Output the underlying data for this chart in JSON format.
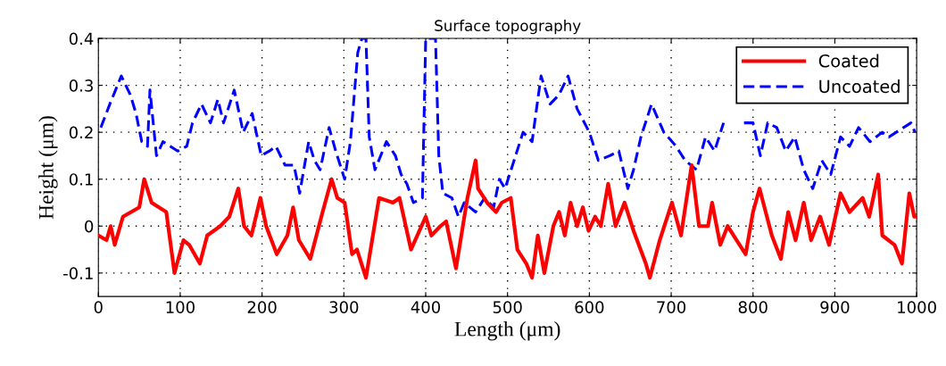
{
  "chart_data": {
    "type": "line",
    "title": "Surface topography",
    "xlabel": "Length (μm)",
    "ylabel": "Height (μm)",
    "xlim": [
      0,
      1000
    ],
    "xticks": [
      0,
      100,
      200,
      300,
      400,
      500,
      600,
      700,
      800,
      900,
      1000
    ],
    "ylim": [
      -0.15,
      0.4
    ],
    "yticks": [
      -0.1,
      0,
      0.1,
      0.2,
      0.3,
      0.4
    ],
    "grid": true,
    "legend": "top right",
    "series": [
      {
        "name": "Coated",
        "color": "#ff0000",
        "line_style": "solid",
        "x": [
          0,
          10,
          15,
          20,
          30,
          40,
          50,
          56,
          65,
          83,
          93,
          104,
          111,
          124,
          133,
          149,
          160,
          171,
          178,
          187,
          198,
          205,
          218,
          231,
          238,
          245,
          259,
          274,
          285,
          292,
          301,
          310,
          316,
          327,
          343,
          360,
          368,
          382,
          400,
          407,
          418,
          425,
          437,
          451,
          461,
          464,
          475,
          486,
          493,
          504,
          512,
          523,
          530,
          537,
          545,
          556,
          563,
          570,
          577,
          585,
          592,
          599,
          607,
          614,
          623,
          632,
          643,
          654,
          669,
          674,
          686,
          701,
          712,
          725,
          734,
          745,
          750,
          760,
          769,
          780,
          791,
          800,
          808,
          823,
          834,
          843,
          852,
          862,
          871,
          882,
          893,
          907,
          918,
          934,
          942,
          953,
          958,
          973,
          982,
          991,
          997,
          1000
        ],
        "values": [
          -0.02,
          -0.03,
          0.0,
          -0.04,
          0.02,
          0.03,
          0.04,
          0.1,
          0.05,
          0.03,
          -0.1,
          -0.03,
          -0.04,
          -0.08,
          -0.02,
          0.0,
          0.02,
          0.08,
          0.0,
          -0.02,
          0.06,
          0.0,
          -0.06,
          -0.02,
          0.04,
          -0.03,
          -0.07,
          0.03,
          0.1,
          0.06,
          0.05,
          -0.06,
          -0.05,
          -0.11,
          0.06,
          0.05,
          0.06,
          -0.05,
          0.02,
          -0.02,
          0.0,
          0.01,
          -0.09,
          0.06,
          0.14,
          0.08,
          0.05,
          0.03,
          0.05,
          0.06,
          -0.05,
          -0.08,
          -0.11,
          -0.02,
          -0.1,
          0.0,
          0.03,
          -0.02,
          0.05,
          0.0,
          0.04,
          -0.01,
          0.02,
          0.0,
          0.09,
          0.0,
          0.05,
          -0.01,
          -0.08,
          -0.11,
          -0.03,
          0.05,
          -0.02,
          0.13,
          0.0,
          0.0,
          0.05,
          -0.04,
          0.0,
          -0.03,
          -0.06,
          0.03,
          0.08,
          -0.02,
          -0.07,
          0.03,
          -0.03,
          0.05,
          -0.03,
          0.02,
          -0.04,
          0.07,
          0.03,
          0.06,
          0.02,
          0.11,
          -0.02,
          -0.04,
          -0.08,
          0.07,
          0.02,
          0.02
        ]
      },
      {
        "name": "Uncoated",
        "color": "#0000ff",
        "line_style": "dashed",
        "x": [
          3,
          14,
          28,
          39,
          46,
          53,
          60,
          63,
          71,
          79,
          88,
          97,
          108,
          115,
          126,
          137,
          146,
          153,
          166,
          177,
          188,
          199,
          209,
          217,
          228,
          239,
          246,
          257,
          264,
          271,
          282,
          290,
          301,
          308,
          317,
          322,
          327,
          331,
          338,
          352,
          363,
          370,
          377,
          385,
          396,
          400,
          412,
          416,
          421,
          432,
          440,
          447,
          461,
          472,
          483,
          490,
          497,
          508,
          519,
          530,
          537,
          541,
          552,
          563,
          574,
          585,
          600,
          611,
          625,
          636,
          647,
          654,
          663,
          676,
          691,
          706,
          717,
          731,
          742,
          753,
          764,
          771,
          789,
          800,
          809,
          818,
          829,
          840,
          851,
          862,
          873,
          884,
          895,
          907,
          918,
          929,
          943,
          958,
          966,
          993,
          998
        ],
        "values": [
          0.21,
          0.26,
          0.32,
          0.28,
          0.24,
          0.18,
          0.17,
          0.29,
          0.15,
          0.18,
          0.17,
          0.16,
          0.17,
          0.22,
          0.26,
          0.22,
          0.27,
          0.22,
          0.29,
          0.2,
          0.24,
          0.15,
          0.16,
          0.17,
          0.13,
          0.13,
          0.07,
          0.18,
          0.14,
          0.12,
          0.21,
          0.16,
          0.1,
          0.18,
          0.37,
          0.4,
          0.4,
          0.19,
          0.12,
          0.18,
          0.15,
          0.11,
          0.09,
          0.05,
          0.06,
          0.4,
          0.4,
          0.15,
          0.07,
          0.06,
          0.02,
          0.05,
          0.03,
          0.06,
          0.04,
          0.1,
          0.08,
          0.14,
          0.2,
          0.18,
          0.27,
          0.32,
          0.26,
          0.28,
          0.32,
          0.25,
          0.2,
          0.14,
          0.15,
          0.16,
          0.08,
          0.12,
          0.19,
          0.26,
          0.2,
          0.17,
          0.14,
          0.12,
          0.19,
          0.16,
          0.22,
          null,
          0.22,
          0.22,
          0.15,
          0.22,
          0.21,
          0.16,
          0.19,
          0.12,
          0.08,
          0.14,
          0.11,
          0.19,
          0.17,
          0.21,
          0.18,
          0.2,
          0.19,
          0.22,
          0.2
        ]
      }
    ]
  }
}
